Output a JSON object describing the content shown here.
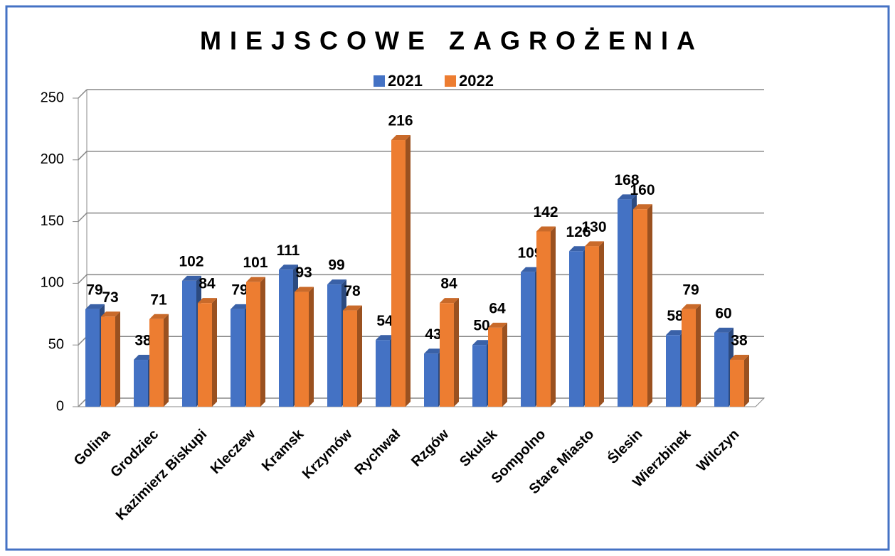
{
  "chart_data": {
    "type": "bar",
    "title": "MIEJSCOWE ZAGROŻENIA",
    "categories": [
      "Golina",
      "Grodziec",
      "Kazimierz Biskupi",
      "Kleczew",
      "Kramsk",
      "Krzymów",
      "Rychwał",
      "Rzgów",
      "Skulsk",
      "Sompolno",
      "Stare Miasto",
      "Ślesin",
      "Wierzbinek",
      "Wilczyn"
    ],
    "series": [
      {
        "name": "2021",
        "color": "#4472c4",
        "values": [
          79,
          38,
          102,
          79,
          111,
          99,
          54,
          43,
          50,
          109,
          126,
          168,
          58,
          60
        ]
      },
      {
        "name": "2022",
        "color": "#ed7d31",
        "values": [
          73,
          71,
          84,
          101,
          93,
          78,
          216,
          84,
          64,
          142,
          130,
          160,
          79,
          38
        ]
      }
    ],
    "ylim": [
      0,
      250
    ],
    "yticks": [
      0,
      50,
      100,
      150,
      200,
      250
    ],
    "grid": true,
    "legend": "top"
  }
}
